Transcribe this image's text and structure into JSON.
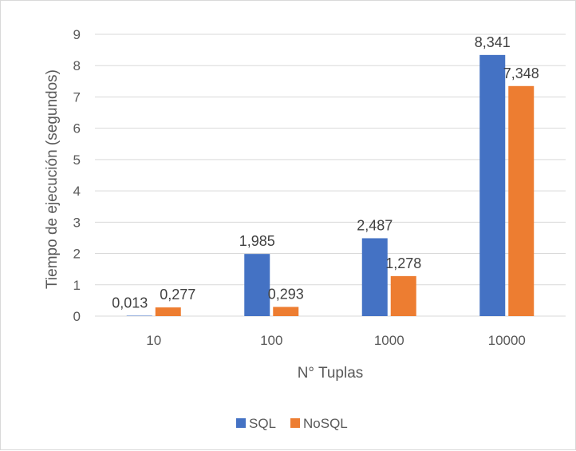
{
  "chart_data": {
    "type": "bar",
    "categories": [
      "10",
      "100",
      "1000",
      "10000"
    ],
    "series": [
      {
        "name": "SQL",
        "color": "#4472c4",
        "values": [
          0.013,
          1.985,
          2.487,
          8.341
        ],
        "labels": [
          "0,013",
          "1,985",
          "2,487",
          "8,341"
        ]
      },
      {
        "name": "NoSQL",
        "color": "#ed7d31",
        "values": [
          0.277,
          0.293,
          1.278,
          7.348
        ],
        "labels": [
          "0,277",
          "0,293",
          "1,278",
          "7,348"
        ]
      }
    ],
    "xlabel": "N° Tuplas",
    "ylabel": "Tiempo de ejecución (segundos)",
    "ylim": [
      0,
      9
    ],
    "yticks": [
      "0",
      "1",
      "2",
      "3",
      "4",
      "5",
      "6",
      "7",
      "8",
      "9"
    ],
    "grid": true,
    "legend_position": "bottom"
  }
}
